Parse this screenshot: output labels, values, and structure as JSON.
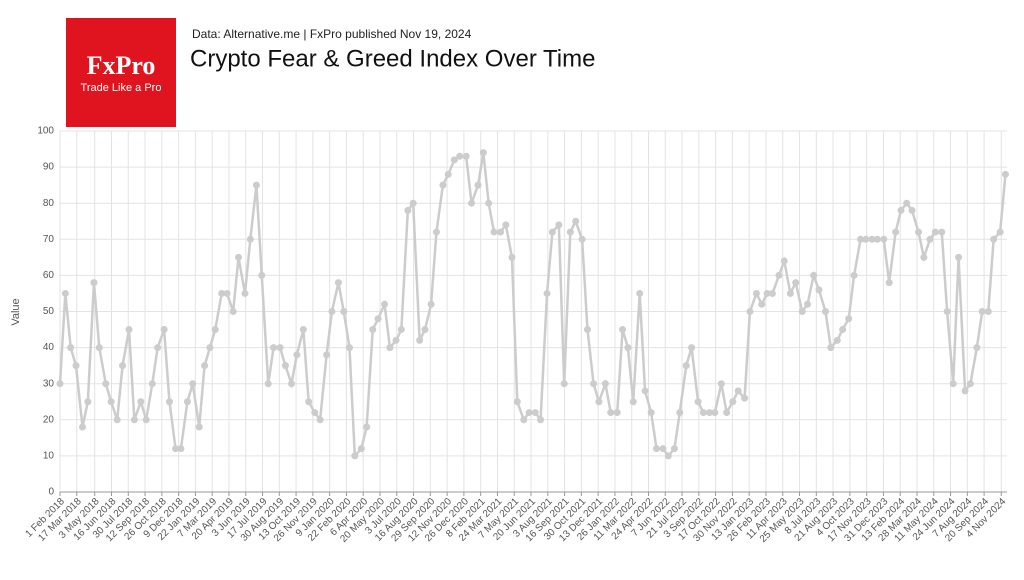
{
  "logo": {
    "brand": "FxPro",
    "tagline": "Trade Like a Pro"
  },
  "chart_data": {
    "type": "line",
    "subtitle": "Data: Alternative.me | FxPro published Nov 19, 2024",
    "title": "Crypto Fear & Greed Index Over Time",
    "y_label": "Value",
    "color": "#cccccc",
    "grid": true,
    "ylim": [
      0,
      100
    ],
    "yticks": [
      0,
      10,
      20,
      30,
      40,
      50,
      60,
      70,
      80,
      90,
      100
    ],
    "xlim": [
      "2018-02-01",
      "2024-11-19"
    ],
    "xticks": [
      {
        "value": "2018-02-01",
        "label": "1 Feb 2018"
      },
      {
        "value": "2018-03-17",
        "label": "17 Mar 2018"
      },
      {
        "value": "2018-05-03",
        "label": "3 May 2018"
      },
      {
        "value": "2018-06-16",
        "label": "16 Jun 2018"
      },
      {
        "value": "2018-07-30",
        "label": "30 Jul 2018"
      },
      {
        "value": "2018-09-12",
        "label": "12 Sep 2018"
      },
      {
        "value": "2018-10-26",
        "label": "26 Oct 2018"
      },
      {
        "value": "2018-12-09",
        "label": "9 Dec 2018"
      },
      {
        "value": "2019-01-22",
        "label": "22 Jan 2019"
      },
      {
        "value": "2019-03-07",
        "label": "7 Mar 2019"
      },
      {
        "value": "2019-04-20",
        "label": "20 Apr 2019"
      },
      {
        "value": "2019-06-03",
        "label": "3 Jun 2019"
      },
      {
        "value": "2019-07-17",
        "label": "17 Jul 2019"
      },
      {
        "value": "2019-08-30",
        "label": "30 Aug 2019"
      },
      {
        "value": "2019-10-13",
        "label": "13 Oct 2019"
      },
      {
        "value": "2019-11-26",
        "label": "26 Nov 2019"
      },
      {
        "value": "2020-01-09",
        "label": "9 Jan 2020"
      },
      {
        "value": "2020-02-22",
        "label": "22 Feb 2020"
      },
      {
        "value": "2020-04-06",
        "label": "6 Apr 2020"
      },
      {
        "value": "2020-05-20",
        "label": "20 May 2020"
      },
      {
        "value": "2020-07-03",
        "label": "3 Jul 2020"
      },
      {
        "value": "2020-08-16",
        "label": "16 Aug 2020"
      },
      {
        "value": "2020-09-29",
        "label": "29 Sep 2020"
      },
      {
        "value": "2020-11-12",
        "label": "12 Nov 2020"
      },
      {
        "value": "2020-12-26",
        "label": "26 Dec 2020"
      },
      {
        "value": "2021-02-08",
        "label": "8 Feb 2021"
      },
      {
        "value": "2021-03-24",
        "label": "24 Mar 2021"
      },
      {
        "value": "2021-05-07",
        "label": "7 May 2021"
      },
      {
        "value": "2021-06-20",
        "label": "20 Jun 2021"
      },
      {
        "value": "2021-08-03",
        "label": "3 Aug 2021"
      },
      {
        "value": "2021-09-16",
        "label": "16 Sep 2021"
      },
      {
        "value": "2021-10-30",
        "label": "30 Oct 2021"
      },
      {
        "value": "2021-12-13",
        "label": "13 Dec 2021"
      },
      {
        "value": "2022-01-26",
        "label": "26 Jan 2022"
      },
      {
        "value": "2022-03-11",
        "label": "11 Mar 2022"
      },
      {
        "value": "2022-04-24",
        "label": "24 Apr 2022"
      },
      {
        "value": "2022-06-07",
        "label": "7 Jun 2022"
      },
      {
        "value": "2022-07-21",
        "label": "21 Jul 2022"
      },
      {
        "value": "2022-09-03",
        "label": "3 Sep 2022"
      },
      {
        "value": "2022-10-17",
        "label": "17 Oct 2022"
      },
      {
        "value": "2022-11-30",
        "label": "30 Nov 2022"
      },
      {
        "value": "2023-01-13",
        "label": "13 Jan 2023"
      },
      {
        "value": "2023-02-26",
        "label": "26 Feb 2023"
      },
      {
        "value": "2023-04-11",
        "label": "11 Apr 2023"
      },
      {
        "value": "2023-05-25",
        "label": "25 May 2023"
      },
      {
        "value": "2023-07-08",
        "label": "8 Jul 2023"
      },
      {
        "value": "2023-08-21",
        "label": "21 Aug 2023"
      },
      {
        "value": "2023-10-04",
        "label": "4 Oct 2023"
      },
      {
        "value": "2023-11-17",
        "label": "17 Nov 2023"
      },
      {
        "value": "2023-12-31",
        "label": "31 Dec 2023"
      },
      {
        "value": "2024-02-13",
        "label": "13 Feb 2024"
      },
      {
        "value": "2024-03-28",
        "label": "28 Mar 2024"
      },
      {
        "value": "2024-05-11",
        "label": "11 May 2024"
      },
      {
        "value": "2024-06-24",
        "label": "24 Jun 2024"
      },
      {
        "value": "2024-08-07",
        "label": "7 Aug 2024"
      },
      {
        "value": "2024-09-20",
        "label": "20 Sep 2024"
      },
      {
        "value": "2024-11-04",
        "label": "4 Nov 2024"
      }
    ],
    "x": [
      "2018-02-01",
      "2018-02-15",
      "2018-03-01",
      "2018-03-15",
      "2018-04-01",
      "2018-04-15",
      "2018-05-01",
      "2018-05-15",
      "2018-06-01",
      "2018-06-15",
      "2018-07-01",
      "2018-07-15",
      "2018-08-01",
      "2018-08-15",
      "2018-09-01",
      "2018-09-15",
      "2018-10-01",
      "2018-10-15",
      "2018-11-01",
      "2018-11-15",
      "2018-12-01",
      "2018-12-15",
      "2019-01-01",
      "2019-01-15",
      "2019-02-01",
      "2019-02-15",
      "2019-03-01",
      "2019-03-15",
      "2019-04-01",
      "2019-04-15",
      "2019-05-01",
      "2019-05-15",
      "2019-06-01",
      "2019-06-15",
      "2019-07-01",
      "2019-07-15",
      "2019-08-01",
      "2019-08-15",
      "2019-09-01",
      "2019-09-15",
      "2019-10-01",
      "2019-10-15",
      "2019-11-01",
      "2019-11-15",
      "2019-12-01",
      "2019-12-15",
      "2020-01-01",
      "2020-01-15",
      "2020-02-01",
      "2020-02-15",
      "2020-03-01",
      "2020-03-15",
      "2020-04-01",
      "2020-04-15",
      "2020-05-01",
      "2020-05-15",
      "2020-06-01",
      "2020-06-15",
      "2020-07-01",
      "2020-07-15",
      "2020-08-01",
      "2020-08-15",
      "2020-09-01",
      "2020-09-15",
      "2020-10-01",
      "2020-10-15",
      "2020-11-01",
      "2020-11-15",
      "2020-12-01",
      "2020-12-15",
      "2021-01-01",
      "2021-01-15",
      "2021-02-01",
      "2021-02-15",
      "2021-03-01",
      "2021-03-15",
      "2021-04-01",
      "2021-04-15",
      "2021-05-01",
      "2021-05-15",
      "2021-06-01",
      "2021-06-15",
      "2021-07-01",
      "2021-07-15",
      "2021-08-01",
      "2021-08-15",
      "2021-09-01",
      "2021-09-15",
      "2021-10-01",
      "2021-10-15",
      "2021-11-01",
      "2021-11-15",
      "2021-12-01",
      "2021-12-15",
      "2022-01-01",
      "2022-01-15",
      "2022-02-01",
      "2022-02-15",
      "2022-03-01",
      "2022-03-15",
      "2022-04-01",
      "2022-04-15",
      "2022-05-01",
      "2022-05-15",
      "2022-06-01",
      "2022-06-15",
      "2022-07-01",
      "2022-07-15",
      "2022-08-01",
      "2022-08-15",
      "2022-09-01",
      "2022-09-15",
      "2022-10-01",
      "2022-10-15",
      "2022-11-01",
      "2022-11-15",
      "2022-12-01",
      "2022-12-15",
      "2023-01-01",
      "2023-01-15",
      "2023-02-01",
      "2023-02-15",
      "2023-03-01",
      "2023-03-15",
      "2023-04-01",
      "2023-04-15",
      "2023-05-01",
      "2023-05-15",
      "2023-06-01",
      "2023-06-15",
      "2023-07-01",
      "2023-07-15",
      "2023-08-01",
      "2023-08-15",
      "2023-09-01",
      "2023-09-15",
      "2023-10-01",
      "2023-10-15",
      "2023-11-01",
      "2023-11-15",
      "2023-12-01",
      "2023-12-15",
      "2024-01-01",
      "2024-01-15",
      "2024-02-01",
      "2024-02-15",
      "2024-03-01",
      "2024-03-15",
      "2024-04-01",
      "2024-04-15",
      "2024-05-01",
      "2024-05-15",
      "2024-06-01",
      "2024-06-15",
      "2024-07-01",
      "2024-07-15",
      "2024-08-01",
      "2024-08-15",
      "2024-09-01",
      "2024-09-15",
      "2024-10-01",
      "2024-10-15",
      "2024-11-01",
      "2024-11-15"
    ],
    "values": [
      30,
      55,
      40,
      35,
      18,
      25,
      58,
      40,
      30,
      25,
      20,
      35,
      45,
      20,
      25,
      20,
      30,
      40,
      45,
      25,
      12,
      12,
      25,
      30,
      18,
      35,
      40,
      45,
      55,
      55,
      50,
      65,
      55,
      70,
      85,
      60,
      30,
      40,
      40,
      35,
      30,
      38,
      45,
      25,
      22,
      20,
      38,
      50,
      58,
      50,
      40,
      10,
      12,
      18,
      45,
      48,
      52,
      40,
      42,
      45,
      78,
      80,
      42,
      45,
      52,
      72,
      85,
      88,
      92,
      93,
      93,
      80,
      85,
      94,
      80,
      72,
      72,
      74,
      65,
      25,
      20,
      22,
      22,
      20,
      55,
      72,
      74,
      30,
      72,
      75,
      70,
      45,
      30,
      25,
      30,
      22,
      22,
      45,
      40,
      25,
      55,
      28,
      22,
      12,
      12,
      10,
      12,
      22,
      35,
      40,
      25,
      22,
      22,
      22,
      30,
      22,
      25,
      28,
      26,
      50,
      55,
      52,
      55,
      55,
      60,
      64,
      55,
      58,
      50,
      52,
      60,
      56,
      50,
      40,
      42,
      45,
      48,
      60,
      70,
      70,
      70,
      70,
      70,
      58,
      72,
      78,
      80,
      78,
      72,
      65,
      70,
      72,
      72,
      50,
      30,
      65,
      28,
      30,
      40,
      50,
      50,
      70,
      72,
      88
    ]
  }
}
